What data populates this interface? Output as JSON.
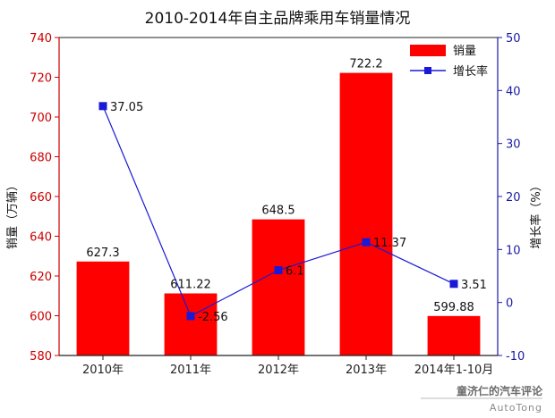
{
  "chart_data": {
    "type": "bar",
    "title": "2010-2014年自主品牌乘用车销量情况",
    "categories": [
      "2010年",
      "2011年",
      "2012年",
      "2013年",
      "2014年1-10月"
    ],
    "series": [
      {
        "name": "销量",
        "type": "bar",
        "axis": "left",
        "color": "#ff0000",
        "values": [
          627.3,
          611.22,
          648.5,
          722.2,
          599.88
        ],
        "labels": [
          "627.3",
          "611.22",
          "648.5",
          "722.2",
          "599.88"
        ]
      },
      {
        "name": "增长率",
        "type": "line",
        "axis": "right",
        "color": "#1a1ad6",
        "values": [
          37.05,
          -2.56,
          6.1,
          11.37,
          3.51
        ],
        "labels": [
          "37.05",
          "-2.56",
          "6.1",
          "11.37",
          "3.51"
        ]
      }
    ],
    "ylabel": "销量（万辆）",
    "ylabel_right": "增长率（%）",
    "ylim": [
      580,
      740
    ],
    "yticks": [
      "580",
      "600",
      "620",
      "640",
      "660",
      "680",
      "700",
      "720",
      "740"
    ],
    "ylim_right": [
      -10,
      50
    ],
    "yticks_right": [
      "-10",
      "0",
      "10",
      "20",
      "30",
      "40",
      "50"
    ],
    "legend": [
      "销量",
      "增长率"
    ],
    "legend_position": "top-right",
    "grid": false
  },
  "watermark": {
    "line1": "童济仁的汽车评论",
    "line2": "AutoTong"
  },
  "colors": {
    "left_axis": "#cc0000",
    "right_axis": "#1a1aa6"
  }
}
